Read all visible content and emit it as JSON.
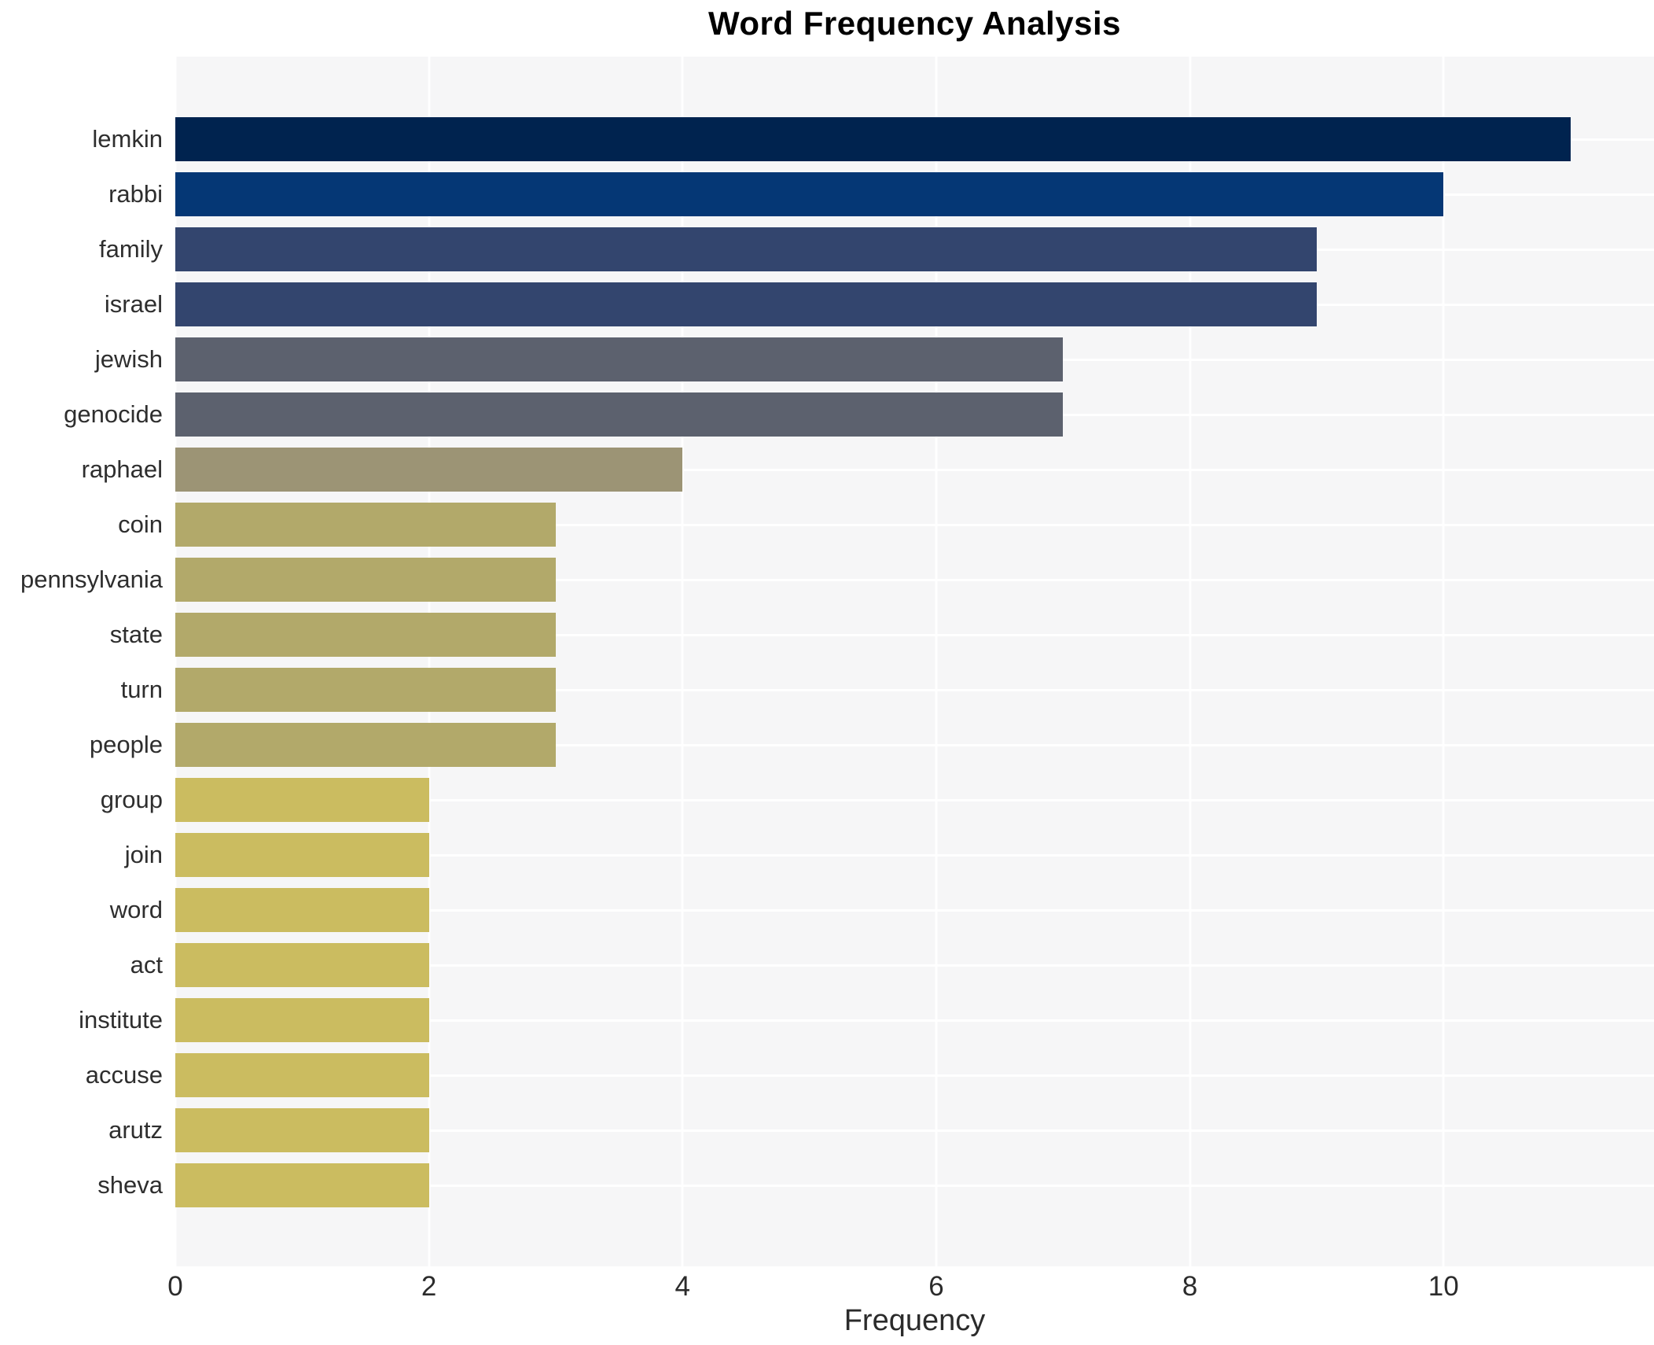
{
  "title": "Word Frequency Analysis",
  "xlabel": "Frequency",
  "chart_data": {
    "type": "bar",
    "orientation": "horizontal",
    "title": "Word Frequency Analysis",
    "xlabel": "Frequency",
    "ylabel": "",
    "categories": [
      "lemkin",
      "rabbi",
      "family",
      "israel",
      "jewish",
      "genocide",
      "raphael",
      "coin",
      "pennsylvania",
      "state",
      "turn",
      "people",
      "group",
      "join",
      "word",
      "act",
      "institute",
      "accuse",
      "arutz",
      "sheva"
    ],
    "values": [
      11,
      10,
      9,
      9,
      7,
      7,
      4,
      3,
      3,
      3,
      3,
      3,
      2,
      2,
      2,
      2,
      2,
      2,
      2,
      2
    ],
    "bar_colors": [
      "#00234f",
      "#053775",
      "#33456e",
      "#33456e",
      "#5c616e",
      "#5c616e",
      "#9c9475",
      "#b2a96a",
      "#b2a96a",
      "#b2a96a",
      "#b2a96a",
      "#b2a96a",
      "#cbbc60",
      "#cbbc60",
      "#cbbc60",
      "#cbbc60",
      "#cbbc60",
      "#cbbc60",
      "#cbbc60",
      "#cbbc60"
    ],
    "x_ticks": [
      "0",
      "2",
      "4",
      "6",
      "8",
      "10"
    ],
    "x_tick_values": [
      0,
      2,
      4,
      6,
      8,
      10
    ],
    "xlim": [
      0,
      11.66
    ],
    "grid": "on",
    "grid_color": "#ffffff",
    "plot_background": "#f6f6f7",
    "legend": "none"
  }
}
